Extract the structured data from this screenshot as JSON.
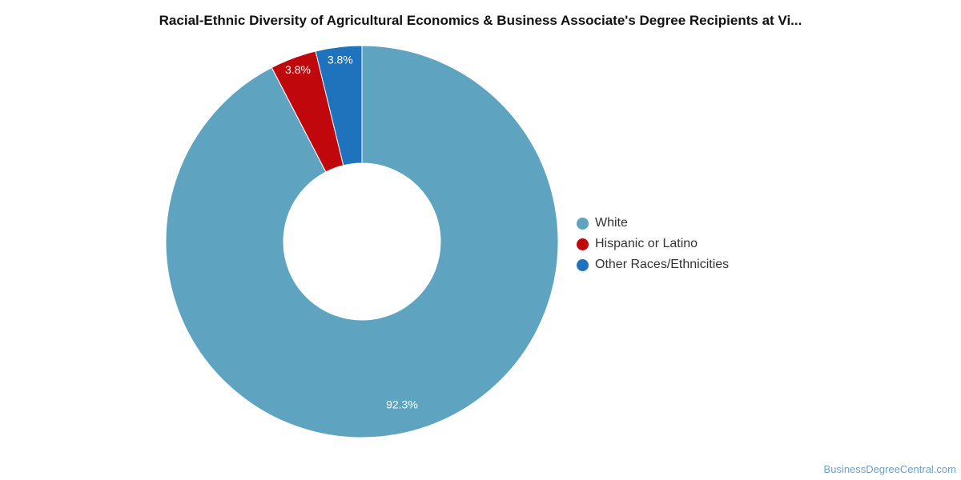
{
  "chart_data": {
    "type": "pie",
    "title": "Racial-Ethnic Diversity of Agricultural Economics & Business Associate's Degree Recipients at Vi...",
    "donut": true,
    "legend_position": "right",
    "slices": [
      {
        "label": "White",
        "value": 92.3,
        "value_label": "92.3%",
        "color": "#5ea3c0"
      },
      {
        "label": "Hispanic or Latino",
        "value": 3.8,
        "value_label": "3.8%",
        "color": "#c0080c"
      },
      {
        "label": "Other Races/Ethnicities",
        "value": 3.8,
        "value_label": "3.8%",
        "color": "#1f72bc"
      }
    ]
  },
  "watermark": "BusinessDegreeCentral.com"
}
